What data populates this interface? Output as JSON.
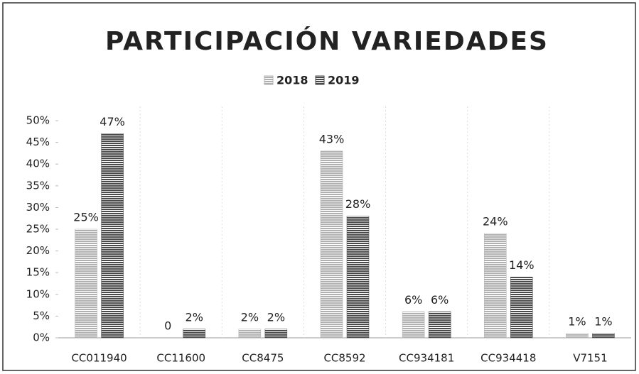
{
  "chart_data": {
    "type": "bar",
    "title": "PARTICIPACIÓN VARIEDADES",
    "categories": [
      "CC011940",
      "CC11600",
      "CC8475",
      "CC8592",
      "CC934181",
      "CC934418",
      "V7151"
    ],
    "series": [
      {
        "name": "2018",
        "color": "#b0b0b0",
        "values": [
          25,
          0,
          2,
          43,
          6,
          24,
          1
        ],
        "value_labels": [
          "25%",
          "0",
          "2%",
          "43%",
          "6%",
          "24%",
          "1%"
        ]
      },
      {
        "name": "2019",
        "color": "#4a4a4a",
        "values": [
          47,
          2,
          2,
          28,
          6,
          14,
          1
        ],
        "value_labels": [
          "47%",
          "2%",
          "2%",
          "28%",
          "6%",
          "14%",
          "1%"
        ]
      }
    ],
    "ylim": [
      0,
      50
    ],
    "yticks": [
      {
        "value": 0,
        "label": "0%"
      },
      {
        "value": 5,
        "label": "5%"
      },
      {
        "value": 10,
        "label": "10%"
      },
      {
        "value": 15,
        "label": "15%"
      },
      {
        "value": 20,
        "label": "20%"
      },
      {
        "value": 25,
        "label": "25%"
      },
      {
        "value": 30,
        "label": "30%"
      },
      {
        "value": 35,
        "label": "35%"
      },
      {
        "value": 40,
        "label": "40%"
      },
      {
        "value": 45,
        "label": "45%"
      },
      {
        "value": 50,
        "label": "50%"
      }
    ],
    "grid": false,
    "legend": "top"
  }
}
